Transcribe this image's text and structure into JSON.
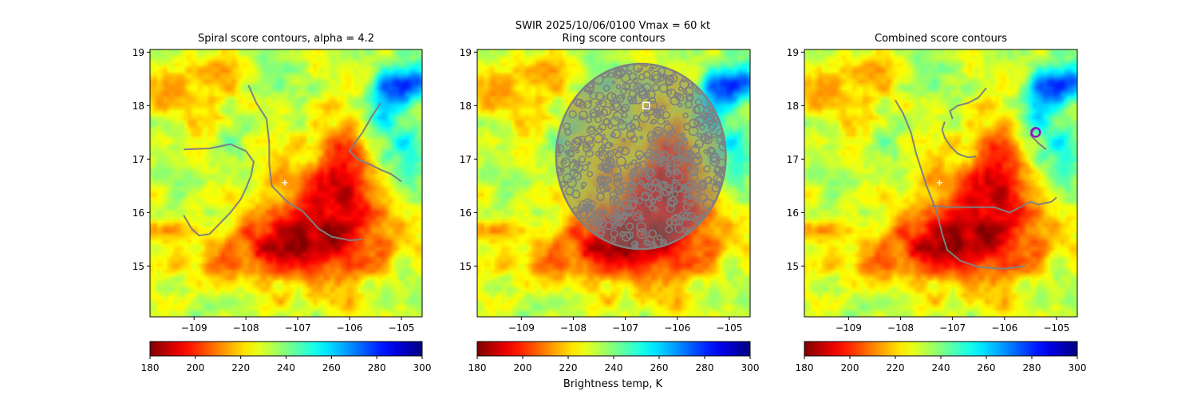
{
  "suptitle": "SWIR  2025/10/06/0100    Vmax = 60 kt",
  "colorbar_label": "Brightness temp, K",
  "chart_data": [
    {
      "type": "heatmap",
      "title": "Spiral score contours, alpha =  4.2",
      "xlim": [
        -109.85,
        -104.6
      ],
      "ylim": [
        14.05,
        19.05
      ],
      "xticks": [
        -109,
        -108,
        -107,
        -106,
        -105
      ],
      "xtick_labels": [
        "−109",
        "−108",
        "−107",
        "−106",
        "−105"
      ],
      "yticks": [
        15,
        16,
        17,
        18,
        19
      ],
      "ytick_labels": [
        "15",
        "16",
        "17",
        "18",
        "19"
      ],
      "colormap": "jet_r",
      "colorbar": {
        "min": 180,
        "max": 300,
        "ticks": [
          180,
          200,
          220,
          240,
          260,
          280,
          300
        ]
      },
      "center_marker": {
        "lon": -107.25,
        "lat": 16.56,
        "color": "#ffffff"
      },
      "contour_color": "#808080",
      "contours": [
        [
          [
            -109.2,
            17.18
          ],
          [
            -108.7,
            17.2
          ],
          [
            -108.3,
            17.28
          ],
          [
            -108.0,
            17.15
          ],
          [
            -107.85,
            16.95
          ],
          [
            -107.9,
            16.7
          ],
          [
            -108.0,
            16.45
          ],
          [
            -108.1,
            16.25
          ],
          [
            -108.3,
            16.0
          ],
          [
            -108.5,
            15.8
          ],
          [
            -108.7,
            15.6
          ],
          [
            -108.9,
            15.57
          ],
          [
            -109.05,
            15.7
          ],
          [
            -109.2,
            15.95
          ]
        ],
        [
          [
            -107.95,
            18.38
          ],
          [
            -107.8,
            18.05
          ],
          [
            -107.6,
            17.75
          ],
          [
            -107.55,
            17.3
          ],
          [
            -107.55,
            16.9
          ],
          [
            -107.5,
            16.5
          ],
          [
            -107.2,
            16.2
          ],
          [
            -106.9,
            16.02
          ],
          [
            -106.6,
            15.7
          ],
          [
            -106.35,
            15.55
          ],
          [
            -106.0,
            15.48
          ],
          [
            -105.75,
            15.5
          ]
        ],
        [
          [
            -105.4,
            18.05
          ],
          [
            -105.6,
            17.75
          ],
          [
            -105.75,
            17.5
          ],
          [
            -105.9,
            17.3
          ],
          [
            -106.0,
            17.15
          ],
          [
            -105.85,
            17.0
          ],
          [
            -105.6,
            16.9
          ],
          [
            -105.4,
            16.8
          ],
          [
            -105.2,
            16.72
          ],
          [
            -105.0,
            16.58
          ]
        ]
      ]
    },
    {
      "type": "heatmap",
      "title": "Ring score contours",
      "xlim": [
        -109.85,
        -104.6
      ],
      "ylim": [
        14.05,
        19.05
      ],
      "xticks": [
        -109,
        -108,
        -107,
        -106,
        -105
      ],
      "xtick_labels": [
        "−109",
        "−108",
        "−107",
        "−106",
        "−105"
      ],
      "yticks": [
        15,
        16,
        17,
        18,
        19
      ],
      "ytick_labels": [
        "15",
        "16",
        "17",
        "18",
        "19"
      ],
      "colormap": "jet_r",
      "colorbar": {
        "min": 180,
        "max": 300,
        "ticks": [
          180,
          200,
          220,
          240,
          260,
          280,
          300
        ]
      },
      "ring_region": {
        "center_lon": -106.7,
        "center_lat": 17.05,
        "radius_lon": 1.65,
        "radius_lat": 1.75,
        "color": "#808080"
      },
      "square_marker": {
        "lon": -106.6,
        "lat": 18.0,
        "color": "#ffffff"
      }
    },
    {
      "type": "heatmap",
      "title": "Combined score contours",
      "xlim": [
        -109.85,
        -104.6
      ],
      "ylim": [
        14.05,
        19.05
      ],
      "xticks": [
        -109,
        -108,
        -107,
        -106,
        -105
      ],
      "xtick_labels": [
        "−109",
        "−108",
        "−107",
        "−106",
        "−105"
      ],
      "yticks": [
        15,
        16,
        17,
        18,
        19
      ],
      "ytick_labels": [
        "15",
        "16",
        "17",
        "18",
        "19"
      ],
      "colormap": "jet_r",
      "colorbar": {
        "min": 180,
        "max": 300,
        "ticks": [
          180,
          200,
          220,
          240,
          260,
          280,
          300
        ]
      },
      "center_marker": {
        "lon": -107.25,
        "lat": 16.56,
        "color": "#ffffff"
      },
      "circle_marker": {
        "lon": -105.4,
        "lat": 17.5,
        "color": "#9400d3"
      },
      "contour_color": "#808080",
      "contours": [
        [
          [
            -108.1,
            18.1
          ],
          [
            -107.95,
            17.85
          ],
          [
            -107.8,
            17.5
          ],
          [
            -107.7,
            17.1
          ],
          [
            -107.6,
            16.8
          ],
          [
            -107.5,
            16.5
          ],
          [
            -107.4,
            16.25
          ],
          [
            -107.3,
            16.0
          ],
          [
            -107.2,
            15.6
          ],
          [
            -107.1,
            15.3
          ],
          [
            -106.85,
            15.1
          ],
          [
            -106.5,
            14.98
          ],
          [
            -106.0,
            14.95
          ],
          [
            -105.6,
            15.0
          ]
        ],
        [
          [
            -107.4,
            16.12
          ],
          [
            -107.0,
            16.1
          ],
          [
            -106.6,
            16.1
          ],
          [
            -106.2,
            16.1
          ],
          [
            -105.9,
            16.0
          ],
          [
            -105.7,
            16.1
          ],
          [
            -105.5,
            16.2
          ],
          [
            -105.35,
            16.15
          ],
          [
            -105.1,
            16.2
          ],
          [
            -105.0,
            16.28
          ]
        ],
        [
          [
            -107.15,
            17.7
          ],
          [
            -107.2,
            17.55
          ],
          [
            -107.15,
            17.4
          ],
          [
            -107.05,
            17.25
          ],
          [
            -106.9,
            17.1
          ],
          [
            -106.7,
            17.03
          ],
          [
            -106.55,
            17.05
          ]
        ],
        [
          [
            -107.0,
            17.75
          ],
          [
            -107.05,
            17.9
          ],
          [
            -106.9,
            18.0
          ],
          [
            -106.7,
            18.05
          ],
          [
            -106.5,
            18.15
          ],
          [
            -106.35,
            18.33
          ]
        ],
        [
          [
            -105.4,
            17.6
          ],
          [
            -105.5,
            17.45
          ],
          [
            -105.35,
            17.3
          ],
          [
            -105.2,
            17.18
          ]
        ]
      ]
    }
  ]
}
